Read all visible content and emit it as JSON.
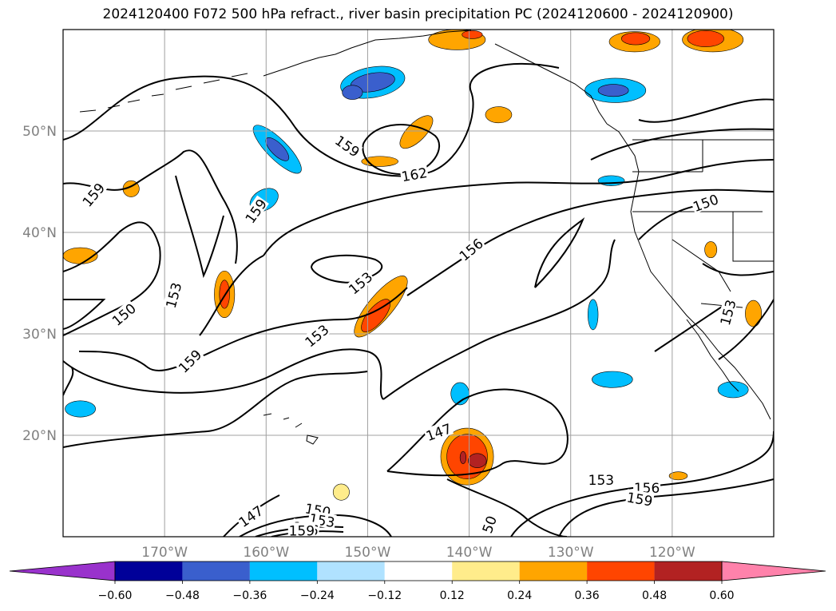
{
  "title": "2024120400 F072 500 hPa refract., river basin precipitation PC (2024120600 - 2024120900)",
  "chart_data": {
    "type": "contour map",
    "lat_ticks": [
      {
        "lat": 50,
        "label": "50°N"
      },
      {
        "lat": 40,
        "label": "40°N"
      },
      {
        "lat": 30,
        "label": "30°N"
      },
      {
        "lat": 20,
        "label": "20°N"
      }
    ],
    "lon_ticks": [
      {
        "lon": -170,
        "label": "170°W"
      },
      {
        "lon": -160,
        "label": "160°W"
      },
      {
        "lon": -150,
        "label": "150°W"
      },
      {
        "lon": -140,
        "label": "140°W"
      },
      {
        "lon": -130,
        "label": "130°W"
      },
      {
        "lon": -120,
        "label": "120°W"
      }
    ],
    "lon_range": [
      -180,
      -110
    ],
    "lat_range": [
      10,
      60
    ],
    "grid": true,
    "contour_labels": [
      {
        "text": "159",
        "lon": -152,
        "lat": 48.5,
        "rot": 35
      },
      {
        "text": "162",
        "lon": -145.4,
        "lat": 45.7,
        "rot": -10
      },
      {
        "text": "159",
        "lon": -177,
        "lat": 43.7,
        "rot": -50
      },
      {
        "text": "159",
        "lon": -161,
        "lat": 42.1,
        "rot": -55
      },
      {
        "text": "150",
        "lon": -116.7,
        "lat": 42.9,
        "rot": -20
      },
      {
        "text": "156",
        "lon": -139.8,
        "lat": 38.3,
        "rot": -40
      },
      {
        "text": "153",
        "lon": -150.7,
        "lat": 35.0,
        "rot": -40
      },
      {
        "text": "153",
        "lon": -169.1,
        "lat": 33.8,
        "rot": -75
      },
      {
        "text": "150",
        "lon": -174,
        "lat": 31.9,
        "rot": -40
      },
      {
        "text": "153",
        "lon": -114.5,
        "lat": 32.1,
        "rot": -75
      },
      {
        "text": "153",
        "lon": -155,
        "lat": 29.8,
        "rot": -40
      },
      {
        "text": "159",
        "lon": -167.5,
        "lat": 27.3,
        "rot": -45
      },
      {
        "text": "147",
        "lon": -143,
        "lat": 20.3,
        "rot": -20
      },
      {
        "text": "153",
        "lon": -127,
        "lat": 15.6,
        "rot": 0
      },
      {
        "text": "156",
        "lon": -122.5,
        "lat": 14.8,
        "rot": 0
      },
      {
        "text": "159",
        "lon": -123.2,
        "lat": 13.7,
        "rot": 10
      },
      {
        "text": "147",
        "lon": -161.5,
        "lat": 12.0,
        "rot": -35
      },
      {
        "text": "150",
        "lon": -154.9,
        "lat": 12.6,
        "rot": 10
      },
      {
        "text": "153",
        "lon": -154.5,
        "lat": 11.6,
        "rot": 10
      },
      {
        "text": "156",
        "lon": -156.1,
        "lat": 10.8,
        "rot": 10
      },
      {
        "text": "159",
        "lon": -156.5,
        "lat": 10.6,
        "rot": 0
      },
      {
        "text": "50",
        "lon": -138,
        "lat": 11.2,
        "rot": -70
      }
    ],
    "colorbar": {
      "levels": [
        -0.6,
        -0.48,
        -0.36,
        -0.24,
        -0.12,
        0.12,
        0.24,
        0.36,
        0.48,
        0.6
      ],
      "tick_labels": [
        "−0.60",
        "−0.48",
        "−0.36",
        "−0.24",
        "−0.12",
        "0.12",
        "0.24",
        "0.36",
        "0.48",
        "0.60"
      ],
      "colors": [
        "#9932cc",
        "#000099",
        "#3a5fcd",
        "#00bfff",
        "#b0e2ff",
        "#ffffff",
        "#ffec8b",
        "#ffa500",
        "#ff4500",
        "#b22222",
        "#ff82ab"
      ],
      "extend": "both"
    },
    "precip_patches": [
      {
        "lon": -149.5,
        "lat": 54.8,
        "rx": 3.2,
        "ry": 1.5,
        "rot": -10,
        "color": "#00bfff"
      },
      {
        "lon": -149.5,
        "lat": 54.8,
        "rx": 2.2,
        "ry": 0.9,
        "rot": -10,
        "color": "#3a5fcd"
      },
      {
        "lon": -151.5,
        "lat": 53.8,
        "rx": 1.0,
        "ry": 0.7,
        "rot": 0,
        "color": "#3a5fcd"
      },
      {
        "lon": -158.9,
        "lat": 48.2,
        "rx": 3.2,
        "ry": 1.0,
        "rot": 45,
        "color": "#00bfff"
      },
      {
        "lon": -158.9,
        "lat": 48.2,
        "rx": 1.5,
        "ry": 0.6,
        "rot": 45,
        "color": "#3a5fcd"
      },
      {
        "lon": -160.2,
        "lat": 43.2,
        "rx": 1.5,
        "ry": 1.0,
        "rot": -30,
        "color": "#00bfff"
      },
      {
        "lon": -125.6,
        "lat": 54.0,
        "rx": 3.0,
        "ry": 1.2,
        "rot": 0,
        "color": "#00bfff"
      },
      {
        "lon": -125.8,
        "lat": 54.0,
        "rx": 1.5,
        "ry": 0.6,
        "rot": 0,
        "color": "#3a5fcd"
      },
      {
        "lon": -123.7,
        "lat": 58.8,
        "rx": 2.5,
        "ry": 1.0,
        "rot": 0,
        "color": "#ffa500"
      },
      {
        "lon": -123.6,
        "lat": 59.1,
        "rx": 1.4,
        "ry": 0.6,
        "rot": 0,
        "color": "#ff4500"
      },
      {
        "lon": -141.2,
        "lat": 59.0,
        "rx": 2.8,
        "ry": 1.0,
        "rot": 0,
        "color": "#ffa500"
      },
      {
        "lon": -139.7,
        "lat": 59.5,
        "rx": 1.0,
        "ry": 0.4,
        "rot": 0,
        "color": "#ff4500"
      },
      {
        "lon": -145.2,
        "lat": 49.9,
        "rx": 2.1,
        "ry": 0.9,
        "rot": -45,
        "color": "#ffa500"
      },
      {
        "lon": -148.8,
        "lat": 47.0,
        "rx": 1.8,
        "ry": 0.5,
        "rot": 0,
        "color": "#ffa500"
      },
      {
        "lon": -164.1,
        "lat": 33.9,
        "rx": 1.0,
        "ry": 2.3,
        "rot": 0,
        "color": "#ffa500"
      },
      {
        "lon": -164.1,
        "lat": 33.9,
        "rx": 0.5,
        "ry": 1.4,
        "rot": 0,
        "color": "#ff4500"
      },
      {
        "lon": -148.7,
        "lat": 32.7,
        "rx": 3.8,
        "ry": 1.2,
        "rot": -50,
        "color": "#ffa500"
      },
      {
        "lon": -149.2,
        "lat": 31.8,
        "rx": 2.0,
        "ry": 0.8,
        "rot": -50,
        "color": "#ff4500"
      },
      {
        "lon": -140.2,
        "lat": 17.9,
        "rx": 2.6,
        "ry": 2.8,
        "rot": 0,
        "color": "#ffa500"
      },
      {
        "lon": -140.2,
        "lat": 17.9,
        "rx": 2.0,
        "ry": 2.2,
        "rot": 0,
        "color": "#ff4500"
      },
      {
        "lon": -139.2,
        "lat": 17.5,
        "rx": 0.9,
        "ry": 0.7,
        "rot": 0,
        "color": "#b22222"
      },
      {
        "lon": -140.6,
        "lat": 17.8,
        "rx": 0.3,
        "ry": 0.6,
        "rot": 0,
        "color": "#b22222"
      },
      {
        "lon": -178.3,
        "lat": 37.7,
        "rx": 1.7,
        "ry": 0.8,
        "rot": 0,
        "color": "#ffa500"
      },
      {
        "lon": -127.8,
        "lat": 31.9,
        "rx": 0.5,
        "ry": 1.5,
        "rot": 0,
        "color": "#00bfff"
      },
      {
        "lon": -125.9,
        "lat": 25.5,
        "rx": 2.0,
        "ry": 0.8,
        "rot": 0,
        "color": "#00bfff"
      },
      {
        "lon": -114.0,
        "lat": 24.5,
        "rx": 1.5,
        "ry": 0.8,
        "rot": 0,
        "color": "#00bfff"
      },
      {
        "lon": -178.3,
        "lat": 22.6,
        "rx": 1.5,
        "ry": 0.8,
        "rot": 0,
        "color": "#00bfff"
      },
      {
        "lon": -140.9,
        "lat": 24.1,
        "rx": 0.9,
        "ry": 1.1,
        "rot": 0,
        "color": "#00bfff"
      },
      {
        "lon": -137.1,
        "lat": 51.6,
        "rx": 1.3,
        "ry": 0.8,
        "rot": 0,
        "color": "#ffa500"
      },
      {
        "lon": -116.0,
        "lat": 59.0,
        "rx": 3.0,
        "ry": 1.2,
        "rot": 0,
        "color": "#ffa500"
      },
      {
        "lon": -116.7,
        "lat": 59.1,
        "rx": 1.8,
        "ry": 0.8,
        "rot": 0,
        "color": "#ff4500"
      },
      {
        "lon": -173.3,
        "lat": 44.3,
        "rx": 0.8,
        "ry": 0.8,
        "rot": 0,
        "color": "#ffa500"
      },
      {
        "lon": -112.0,
        "lat": 32.0,
        "rx": 0.8,
        "ry": 1.3,
        "rot": 0,
        "color": "#ffa500"
      },
      {
        "lon": -116.2,
        "lat": 38.3,
        "rx": 0.6,
        "ry": 0.8,
        "rot": 0,
        "color": "#ffa500"
      },
      {
        "lon": -152.6,
        "lat": 14.4,
        "rx": 0.8,
        "ry": 0.8,
        "rot": 0,
        "color": "#ffec8b"
      },
      {
        "lon": -119.4,
        "lat": 16.0,
        "rx": 0.9,
        "ry": 0.4,
        "rot": 0,
        "color": "#ffa500"
      },
      {
        "lon": -126.0,
        "lat": 45.1,
        "rx": 1.3,
        "ry": 0.5,
        "rot": 0,
        "color": "#00bfff"
      }
    ]
  }
}
